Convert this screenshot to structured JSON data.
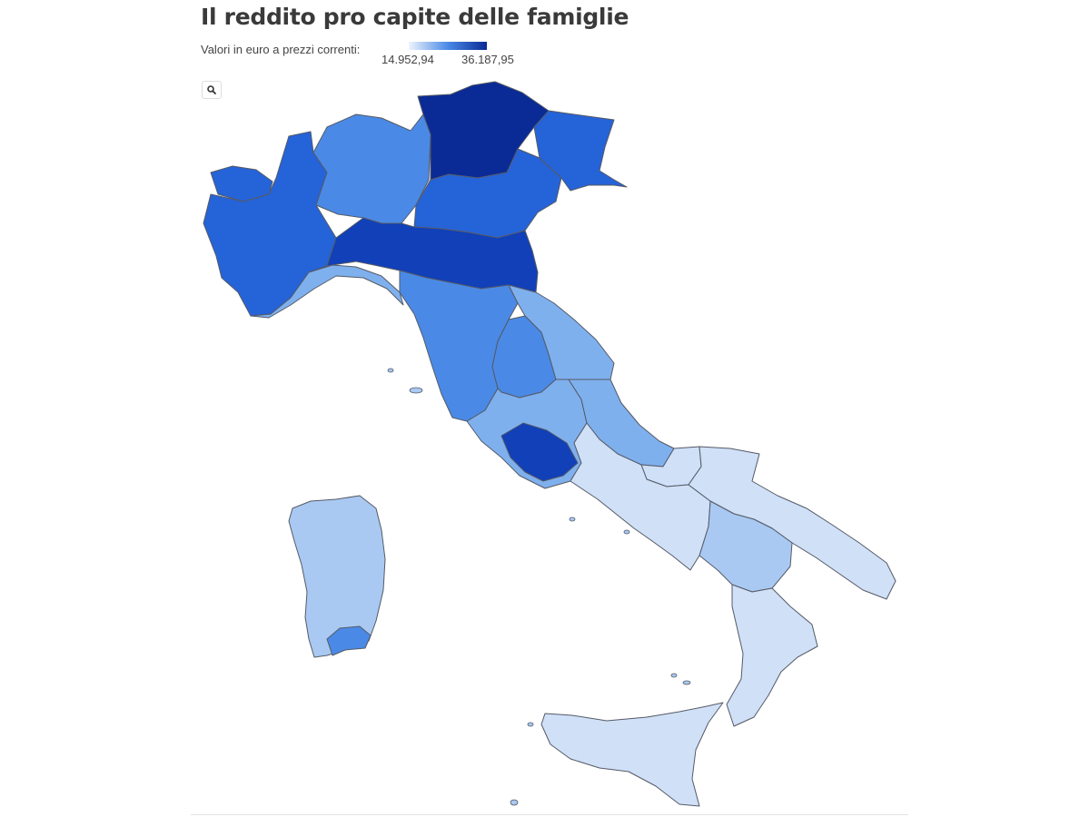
{
  "header": {
    "title": "Il reddito pro capite delle famiglie",
    "subtitle": "Valori in euro a prezzi correnti:"
  },
  "legend": {
    "min_label": "14.952,94",
    "max_label": "36.187,95",
    "min_value": 14952.94,
    "max_value": 36187.95,
    "color_low": "#eef4fc",
    "color_high": "#0a2a96"
  },
  "controls": {
    "zoom_icon": "search-icon"
  },
  "map": {
    "colors": {
      "very_light": "#eaf1fb",
      "light": "#cfe0f7",
      "light_medium": "#a9c9f2",
      "medium": "#7fb0ee",
      "medium_dark": "#4a8ae6",
      "dark": "#2563d8",
      "very_dark": "#1140b8",
      "darkest": "#0a2a96",
      "border": "#555a66"
    },
    "regions": [
      {
        "name": "Valle d'Aosta",
        "level": "dark"
      },
      {
        "name": "Piemonte",
        "level": "dark"
      },
      {
        "name": "Lombardia",
        "level": "medium_dark"
      },
      {
        "name": "Trentino-Alto Adige",
        "level": "darkest"
      },
      {
        "name": "Veneto",
        "level": "dark"
      },
      {
        "name": "Friuli-Venezia Giulia",
        "level": "dark"
      },
      {
        "name": "Liguria",
        "level": "medium"
      },
      {
        "name": "Emilia-Romagna",
        "level": "very_dark"
      },
      {
        "name": "Toscana",
        "level": "medium_dark"
      },
      {
        "name": "Umbria",
        "level": "medium_dark"
      },
      {
        "name": "Marche",
        "level": "medium"
      },
      {
        "name": "Lazio",
        "level": "medium"
      },
      {
        "name": "Roma",
        "level": "very_dark"
      },
      {
        "name": "Abruzzo",
        "level": "medium"
      },
      {
        "name": "Molise",
        "level": "light"
      },
      {
        "name": "Campania",
        "level": "light"
      },
      {
        "name": "Puglia",
        "level": "light"
      },
      {
        "name": "Basilicata",
        "level": "light_medium"
      },
      {
        "name": "Calabria",
        "level": "light"
      },
      {
        "name": "Sicilia",
        "level": "light"
      },
      {
        "name": "Sardegna",
        "level": "light_medium"
      },
      {
        "name": "Cagliari",
        "level": "medium_dark"
      }
    ]
  }
}
